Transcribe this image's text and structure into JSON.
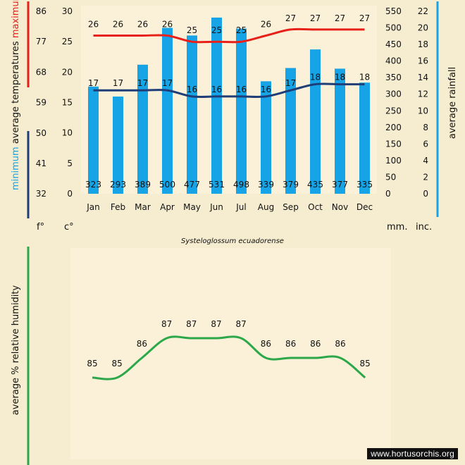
{
  "colors": {
    "background": "#f6edd0",
    "panel": "#faf1d8",
    "max_color": "#e8201a",
    "min_color": "#1f3e78",
    "rain_color": "#17a4e6",
    "humidity_color": "#2ca84a"
  },
  "chart_data": [
    {
      "type": "bar",
      "title": "Systeloglossum ecuadorense",
      "categories": [
        "Jan",
        "Feb",
        "Mar",
        "Apr",
        "May",
        "Jun",
        "Jul",
        "Aug",
        "Sep",
        "Oct",
        "Nov",
        "Dec"
      ],
      "rainfall_mm": [
        323,
        293,
        389,
        500,
        477,
        531,
        498,
        339,
        379,
        435,
        377,
        335
      ],
      "max_temp_c": [
        26,
        26,
        26,
        26,
        25,
        25,
        25,
        26,
        27,
        27,
        27,
        27
      ],
      "min_temp_c": [
        17,
        17,
        17,
        17,
        16,
        16,
        16,
        16,
        17,
        18,
        18,
        18
      ],
      "axes": {
        "fahrenheit": {
          "label": "f°",
          "ticks": [
            "86",
            "77",
            "68",
            "59",
            "50",
            "41",
            "32"
          ]
        },
        "celsius": {
          "label": "c°",
          "ticks": [
            "30",
            "25",
            "20",
            "15",
            "10",
            "5",
            "0"
          ],
          "ylim": [
            0,
            30
          ]
        },
        "mm": {
          "label": "mm.",
          "ticks": [
            "550",
            "500",
            "450",
            "400",
            "350",
            "300",
            "250",
            "200",
            "150",
            "100",
            "50",
            "0"
          ],
          "ylim": [
            0,
            550
          ]
        },
        "inches": {
          "label": "inc.",
          "ticks": [
            "22",
            "20",
            "18",
            "16",
            "14",
            "12",
            "10",
            "8",
            "6",
            "4",
            "2",
            "0"
          ]
        },
        "left_title": {
          "maximum": "maximum",
          "average": "average",
          "temperatures": "temperatures",
          "minimum": "minimum"
        },
        "right_title": "average rainfall"
      }
    },
    {
      "type": "line",
      "categories": [
        "Jan",
        "Feb",
        "Mar",
        "Apr",
        "May",
        "Jun",
        "Jul",
        "Aug",
        "Sep",
        "Oct",
        "Nov",
        "Dec"
      ],
      "humidity_pct": [
        85,
        85,
        86,
        87,
        87,
        87,
        87,
        86,
        86,
        86,
        86,
        85
      ],
      "ylabel": "average %  relative humidity"
    }
  ],
  "credit": "www.hortusorchis.org"
}
